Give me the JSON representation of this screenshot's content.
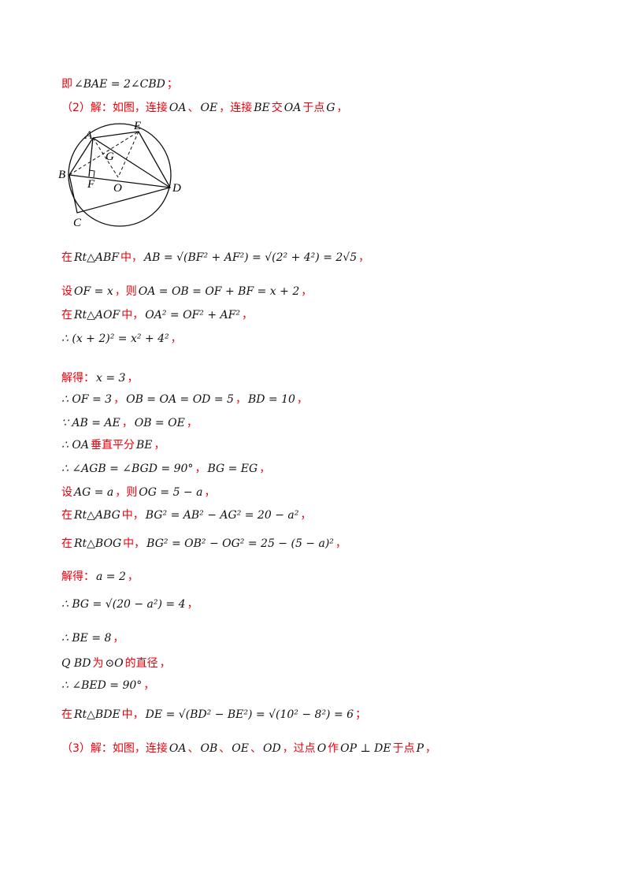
{
  "lines": [
    [
      "即",
      "∠BAE = 2∠CBD",
      "；"
    ],
    [
      "（2）解：如图，连接",
      "OA",
      "、",
      "OE",
      "，连接",
      "BE",
      "交",
      "OA",
      "于点",
      "G",
      "，"
    ],
    [
      "在",
      "Rt△ABF",
      "中，",
      "AB = √(BF² + AF²) = √(2² + 4²) = 2√5",
      "，"
    ],
    [
      "设",
      "OF = x",
      "，则",
      "OA = OB = OF + BF = x + 2",
      "，"
    ],
    [
      "在",
      "Rt△AOF",
      "中，",
      "OA² = OF² + AF²",
      "，"
    ],
    [
      "∴ (x + 2)² = x² + 4²",
      "，"
    ],
    [
      "解得：",
      "x = 3",
      "，"
    ],
    [
      "∴ OF = 3",
      "，",
      "OB = OA = OD = 5",
      "，",
      "BD = 10",
      "，"
    ],
    [
      "∵ AB = AE",
      "，",
      "OB = OE",
      "，"
    ],
    [
      "∴ OA",
      "垂直平分",
      "BE",
      "，"
    ],
    [
      "∴ ∠AGB = ∠BGD = 90°",
      "，",
      "BG = EG",
      "，"
    ],
    [
      "设",
      "AG = a",
      "，则",
      "OG = 5 − a",
      "，"
    ],
    [
      "在",
      "Rt△ABG",
      "中，",
      "BG² = AB² − AG² = 20 − a²",
      "，"
    ],
    [
      "在",
      "Rt△BOG",
      "中，",
      "BG² = OB² − OG² = 25 − (5 − a)²",
      "，"
    ],
    [
      "解得：",
      "a = 2",
      "，"
    ],
    [
      "∴ BG = √(20 − a²) = 4",
      "，"
    ],
    [
      "∴ BE = 8",
      "，"
    ],
    [
      "Q BD",
      "为",
      "⊙O",
      "的直径",
      "，"
    ],
    [
      "∴ ∠BED = 90°",
      "，"
    ],
    [
      "在",
      "Rt△BDE",
      "中，",
      "DE = √(BD² − BE²) = √(10² − 8²) = 6",
      "；"
    ],
    [
      "（3）解：如图，连接",
      "OA",
      "、",
      "OB",
      "、",
      "OE",
      "、",
      "OD",
      "，过点",
      "O",
      "作",
      "OP ⊥ DE",
      "于点",
      "P",
      "，"
    ]
  ],
  "figure": {
    "labels": [
      "A",
      "E",
      "G",
      "B",
      "F",
      "O",
      "D",
      "C"
    ]
  }
}
